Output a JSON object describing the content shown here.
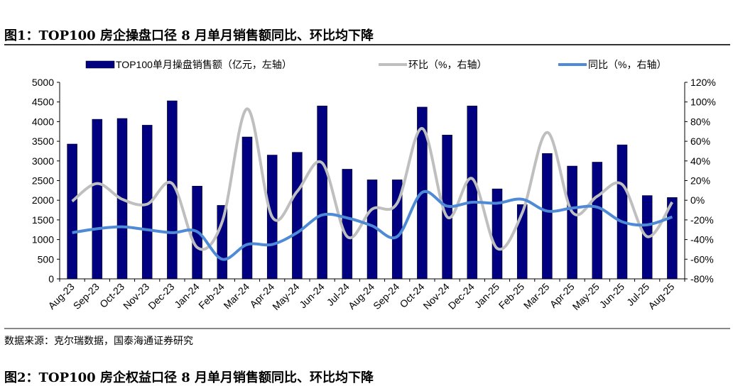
{
  "title": "图1：TOP100 房企操盘口径 8 月单月销售额同比、环比均下降",
  "source": "数据来源：克尔瑞数据，国泰海通证券研究",
  "next_title": "图2：TOP100 房企权益口径 8 月单月销售额同比、环比均下降",
  "colors": {
    "bar": "#000080",
    "mom": "#BFBFBF",
    "yoy": "#4F8AD6"
  },
  "chart_data": {
    "type": "bar+line",
    "title": "TOP100 房企操盘口径 8 月单月销售额同比、环比均下降",
    "categories": [
      "Aug-23",
      "Sep-23",
      "Oct-23",
      "Nov-23",
      "Dec-23",
      "Jan-24",
      "Feb-24",
      "Mar-24",
      "Apr-24",
      "May-24",
      "Jun-24",
      "Jul-24",
      "Aug-24",
      "Sep-24",
      "Oct-24",
      "Nov-24",
      "Dec-24",
      "Jan-25",
      "Feb-25",
      "Mar-25",
      "Apr-25",
      "May-25",
      "Jun-25",
      "Jul-25",
      "Aug-25"
    ],
    "series": [
      {
        "name": "TOP100单月操盘销售额（亿元，左轴）",
        "type": "bar",
        "axis": "left",
        "values": [
          3430,
          4060,
          4080,
          3910,
          4530,
          2360,
          1870,
          3610,
          3150,
          3220,
          4400,
          2790,
          2520,
          2520,
          4370,
          3660,
          4400,
          2290,
          1890,
          3190,
          2870,
          2970,
          3410,
          2120,
          2070
        ]
      },
      {
        "name": "环比（%，右轴）",
        "type": "line",
        "axis": "right",
        "values": [
          -1,
          17,
          1,
          -4,
          17,
          -48,
          -22,
          93,
          -17,
          9,
          38,
          -37,
          -9,
          -3,
          73,
          -17,
          22,
          -49,
          -13,
          69,
          -12,
          4,
          16,
          -37,
          -2
        ]
      },
      {
        "name": "同比（%，右轴）",
        "type": "line",
        "axis": "right",
        "values": [
          -33,
          -29,
          -27,
          -30,
          -33,
          -32,
          -60,
          -45,
          -45,
          -33,
          -15,
          -18,
          -26,
          -37,
          8,
          -6,
          -2,
          -3,
          1,
          -11,
          -8,
          -7,
          -22,
          -25,
          -17
        ]
      }
    ],
    "left_axis": {
      "min": 0,
      "max": 5000,
      "ticks": [
        "0",
        "500",
        "1000",
        "1500",
        "2000",
        "2500",
        "3000",
        "3500",
        "4000",
        "4500",
        "5000"
      ]
    },
    "right_axis": {
      "min": -80,
      "max": 120,
      "ticks": [
        "-80%",
        "-60%",
        "-40%",
        "-20%",
        "0%",
        "20%",
        "40%",
        "60%",
        "80%",
        "100%",
        "120%"
      ]
    },
    "legend_position": "top",
    "grid": false
  }
}
